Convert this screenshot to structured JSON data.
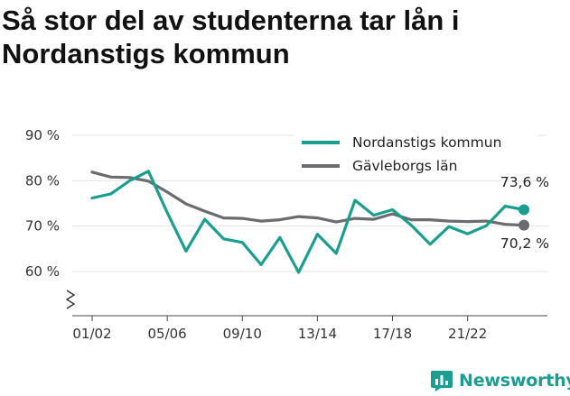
{
  "title": "Så stor del av studenterna tar lån i Nordanstigs kommun",
  "brand": {
    "name": "Newsworthy",
    "icon": "bar-chart-badge-icon",
    "color": "#1a9e8f"
  },
  "chart_data": {
    "type": "line",
    "title": "Så stor del av studenterna tar lån i Nordanstigs kommun",
    "xlabel": "",
    "ylabel": "",
    "ylim": [
      50,
      90
    ],
    "yticks": [
      60,
      70,
      80,
      90
    ],
    "ytick_labels": [
      "60 %",
      "70 %",
      "80 %",
      "90 %"
    ],
    "y_axis_break": true,
    "x": [
      "01/02",
      "02/03",
      "03/04",
      "04/05",
      "05/06",
      "06/07",
      "07/08",
      "08/09",
      "09/10",
      "10/11",
      "11/12",
      "12/13",
      "13/14",
      "14/15",
      "15/16",
      "16/17",
      "17/18",
      "18/19",
      "19/20",
      "20/21",
      "21/22",
      "22/23",
      "23/24",
      "24/25"
    ],
    "xtick_labels": [
      "01/02",
      "05/06",
      "09/10",
      "13/14",
      "17/18",
      "21/22"
    ],
    "grid": "horizontal",
    "legend_position": "top-right",
    "series": [
      {
        "name": "Nordanstigs kommun",
        "color": "#1a9e8f",
        "values": [
          76.2,
          77.1,
          80.0,
          82.1,
          73.0,
          64.5,
          71.5,
          67.2,
          66.4,
          61.5,
          67.5,
          59.8,
          68.2,
          64.0,
          75.7,
          72.4,
          73.6,
          70.2,
          66.0,
          69.9,
          68.3,
          70.1,
          74.4,
          73.6
        ],
        "end_label": "73,6 %"
      },
      {
        "name": "Gävleborgs län",
        "color": "#6b6b70",
        "values": [
          81.9,
          80.8,
          80.7,
          79.9,
          77.5,
          74.9,
          73.3,
          71.8,
          71.7,
          71.1,
          71.4,
          72.1,
          71.8,
          70.9,
          71.7,
          71.5,
          72.7,
          71.4,
          71.4,
          71.1,
          71.0,
          71.1,
          70.4,
          70.2
        ],
        "end_label": "70,2 %"
      }
    ]
  }
}
